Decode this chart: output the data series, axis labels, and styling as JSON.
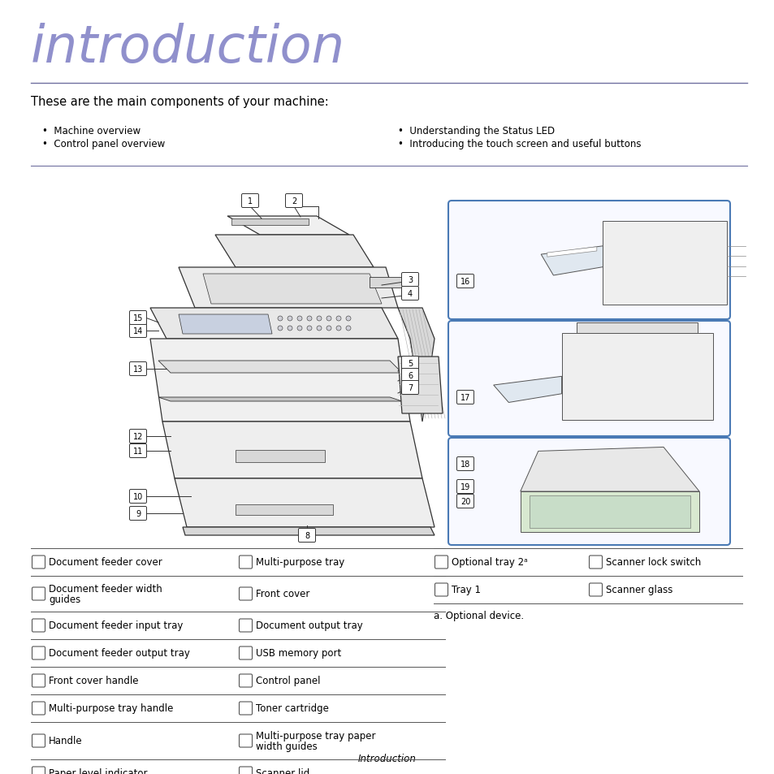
{
  "title": "introduction",
  "title_color": "#9090cc",
  "subtitle": "These are the main components of your machine:",
  "bullet_left": [
    "Machine overview",
    "Control panel overview"
  ],
  "bullet_right": [
    "Understanding the Status LED",
    "Introducing the touch screen and useful buttons"
  ],
  "table_left": [
    [
      "Document feeder cover",
      "Multi-purpose tray"
    ],
    [
      "Document feeder width\nguides",
      "Front cover"
    ],
    [
      "Document feeder input tray",
      "Document output tray"
    ],
    [
      "Document feeder output tray",
      "USB memory port"
    ],
    [
      "Front cover handle",
      "Control panel"
    ],
    [
      "Multi-purpose tray handle",
      "Toner cartridge"
    ],
    [
      "Handle",
      "Multi-purpose tray paper\nwidth guides"
    ],
    [
      "Paper level indicator",
      "Scanner lid"
    ]
  ],
  "table_right": [
    [
      "Optional tray 2ᵃ",
      "Scanner lock switch"
    ],
    [
      "Tray 1",
      "Scanner glass"
    ]
  ],
  "footnote": "a. Optional device.",
  "footer": "Introduction",
  "bg_color": "#ffffff",
  "text_color": "#000000",
  "line_color": "#7070a0",
  "box_border": "#4a7ab5",
  "table_line": "#555555"
}
